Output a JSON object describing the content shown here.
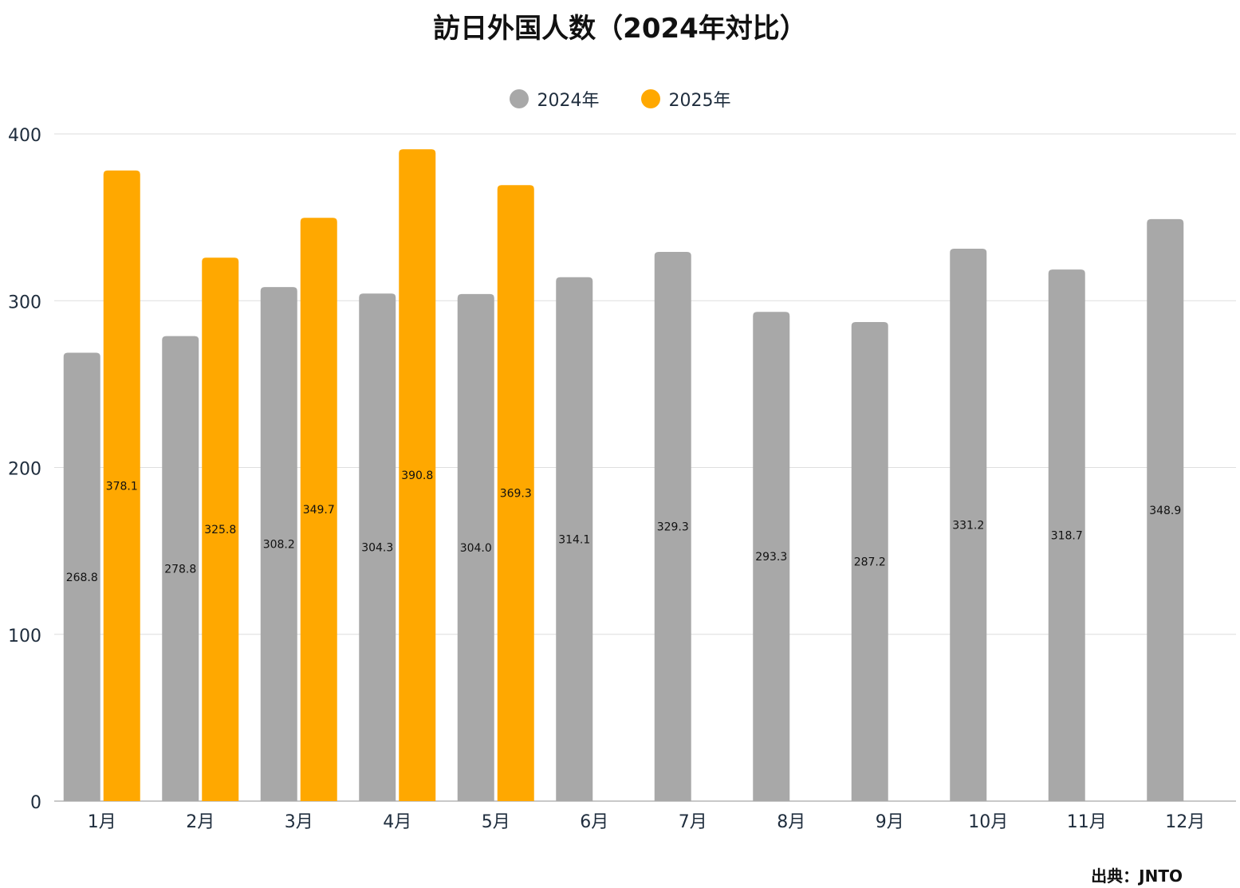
{
  "chart_data": {
    "type": "bar",
    "title": "訪日外国人数（2024年対比）",
    "xlabel": "",
    "ylabel": "",
    "ylim": [
      0,
      400
    ],
    "yticks": [
      0,
      100,
      200,
      300,
      400
    ],
    "grid": true,
    "legend_position": "top-center",
    "categories": [
      "1月",
      "2月",
      "3月",
      "4月",
      "5月",
      "6月",
      "7月",
      "8月",
      "9月",
      "10月",
      "11月",
      "12月"
    ],
    "series": [
      {
        "name": "2024年",
        "color": "#a8a8a8",
        "values": [
          268.8,
          278.8,
          308.2,
          304.3,
          304.0,
          314.1,
          329.3,
          293.3,
          287.2,
          331.2,
          318.7,
          348.9
        ],
        "labels": [
          "268.8",
          "278.8",
          "308.2",
          "304.3",
          "304.0",
          "314.1",
          "329.3",
          "293.3",
          "287.2",
          "331.2",
          "318.7",
          "348.9"
        ]
      },
      {
        "name": "2025年",
        "color": "#ffa800",
        "values": [
          378.1,
          325.8,
          349.7,
          390.8,
          369.3,
          null,
          null,
          null,
          null,
          null,
          null,
          null
        ],
        "labels": [
          "378.1",
          "325.8",
          "349.7",
          "390.8",
          "369.3",
          null,
          null,
          null,
          null,
          null,
          null,
          null
        ]
      }
    ]
  },
  "source": "出典：JNTO"
}
